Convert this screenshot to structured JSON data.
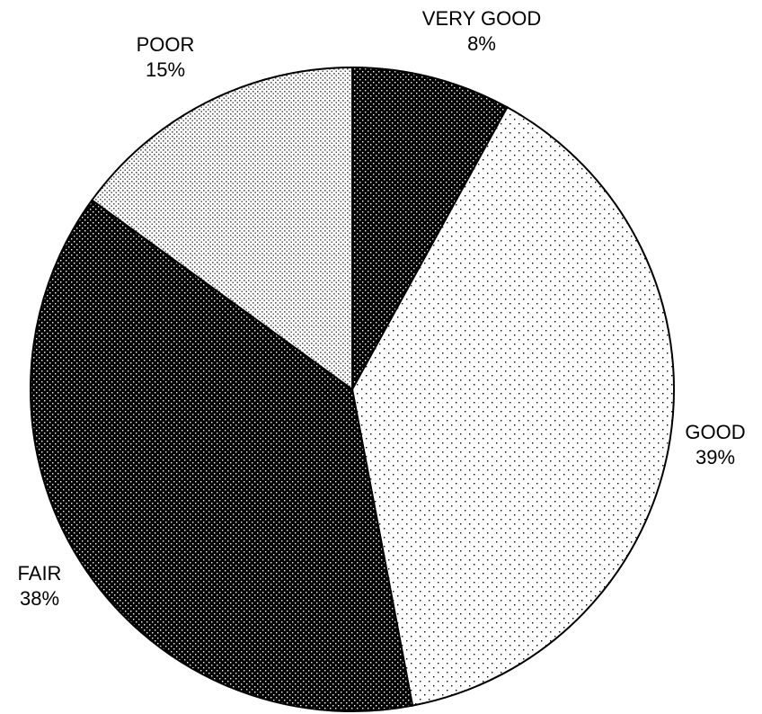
{
  "chart_data": {
    "type": "pie",
    "title": "",
    "slices": [
      {
        "label": "VERY GOOD",
        "value_label": "8%",
        "value": 8,
        "pattern": "dense-dark-dots"
      },
      {
        "label": "GOOD",
        "value_label": "39%",
        "value": 39,
        "pattern": "sparse-light-dots"
      },
      {
        "label": "FAIR",
        "value_label": "38%",
        "value": 38,
        "pattern": "dense-dark-dots"
      },
      {
        "label": "POOR",
        "value_label": "15%",
        "value": 15,
        "pattern": "medium-light-dots"
      }
    ],
    "start_angle": "12 o'clock",
    "direction": "clockwise",
    "colors": {
      "outline": "#000000",
      "background": "#ffffff"
    }
  }
}
